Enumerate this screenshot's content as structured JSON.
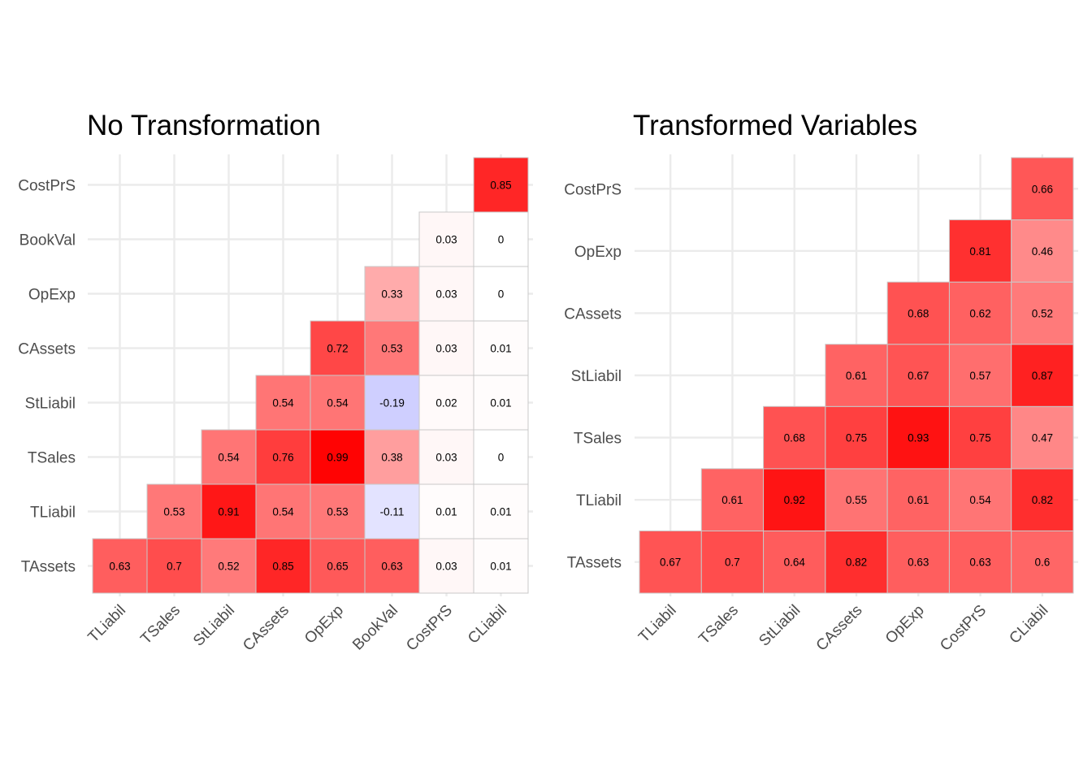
{
  "colors": {
    "high": "#FF0000",
    "mid": "#FFFFFF",
    "low": "#0000FF",
    "grid": "#EBEBEB",
    "tile_border": "#C8C8C8",
    "tick_text": "#4D4D4D"
  },
  "chart_data": [
    {
      "type": "heatmap",
      "title": "No Transformation",
      "x_categories": [
        "TLiabil",
        "TSales",
        "StLiabil",
        "CAssets",
        "OpExp",
        "BookVal",
        "CostPrS",
        "CLiabil"
      ],
      "y_categories": [
        "TAssets",
        "TLiabil",
        "TSales",
        "StLiabil",
        "CAssets",
        "OpExp",
        "BookVal",
        "CostPrS"
      ],
      "value_range": [
        -1,
        1
      ],
      "grid": true,
      "legend": "none",
      "cells": [
        {
          "x": "TLiabil",
          "y": "TAssets",
          "value": 0.63,
          "label": "0.63"
        },
        {
          "x": "TSales",
          "y": "TAssets",
          "value": 0.7,
          "label": "0.7"
        },
        {
          "x": "StLiabil",
          "y": "TAssets",
          "value": 0.52,
          "label": "0.52"
        },
        {
          "x": "CAssets",
          "y": "TAssets",
          "value": 0.85,
          "label": "0.85"
        },
        {
          "x": "OpExp",
          "y": "TAssets",
          "value": 0.65,
          "label": "0.65"
        },
        {
          "x": "BookVal",
          "y": "TAssets",
          "value": 0.63,
          "label": "0.63"
        },
        {
          "x": "CostPrS",
          "y": "TAssets",
          "value": 0.03,
          "label": "0.03"
        },
        {
          "x": "CLiabil",
          "y": "TAssets",
          "value": 0.01,
          "label": "0.01"
        },
        {
          "x": "TSales",
          "y": "TLiabil",
          "value": 0.53,
          "label": "0.53"
        },
        {
          "x": "StLiabil",
          "y": "TLiabil",
          "value": 0.91,
          "label": "0.91"
        },
        {
          "x": "CAssets",
          "y": "TLiabil",
          "value": 0.54,
          "label": "0.54"
        },
        {
          "x": "OpExp",
          "y": "TLiabil",
          "value": 0.53,
          "label": "0.53"
        },
        {
          "x": "BookVal",
          "y": "TLiabil",
          "value": -0.11,
          "label": "-0.11"
        },
        {
          "x": "CostPrS",
          "y": "TLiabil",
          "value": 0.01,
          "label": "0.01"
        },
        {
          "x": "CLiabil",
          "y": "TLiabil",
          "value": 0.01,
          "label": "0.01"
        },
        {
          "x": "StLiabil",
          "y": "TSales",
          "value": 0.54,
          "label": "0.54"
        },
        {
          "x": "CAssets",
          "y": "TSales",
          "value": 0.76,
          "label": "0.76"
        },
        {
          "x": "OpExp",
          "y": "TSales",
          "value": 0.99,
          "label": "0.99"
        },
        {
          "x": "BookVal",
          "y": "TSales",
          "value": 0.38,
          "label": "0.38"
        },
        {
          "x": "CostPrS",
          "y": "TSales",
          "value": 0.03,
          "label": "0.03"
        },
        {
          "x": "CLiabil",
          "y": "TSales",
          "value": 0,
          "label": "0"
        },
        {
          "x": "CAssets",
          "y": "StLiabil",
          "value": 0.54,
          "label": "0.54"
        },
        {
          "x": "OpExp",
          "y": "StLiabil",
          "value": 0.54,
          "label": "0.54"
        },
        {
          "x": "BookVal",
          "y": "StLiabil",
          "value": -0.19,
          "label": "-0.19"
        },
        {
          "x": "CostPrS",
          "y": "StLiabil",
          "value": 0.02,
          "label": "0.02"
        },
        {
          "x": "CLiabil",
          "y": "StLiabil",
          "value": 0.01,
          "label": "0.01"
        },
        {
          "x": "OpExp",
          "y": "CAssets",
          "value": 0.72,
          "label": "0.72"
        },
        {
          "x": "BookVal",
          "y": "CAssets",
          "value": 0.53,
          "label": "0.53"
        },
        {
          "x": "CostPrS",
          "y": "CAssets",
          "value": 0.03,
          "label": "0.03"
        },
        {
          "x": "CLiabil",
          "y": "CAssets",
          "value": 0.01,
          "label": "0.01"
        },
        {
          "x": "BookVal",
          "y": "OpExp",
          "value": 0.33,
          "label": "0.33"
        },
        {
          "x": "CostPrS",
          "y": "OpExp",
          "value": 0.03,
          "label": "0.03"
        },
        {
          "x": "CLiabil",
          "y": "OpExp",
          "value": 0,
          "label": "0"
        },
        {
          "x": "CostPrS",
          "y": "BookVal",
          "value": 0.03,
          "label": "0.03"
        },
        {
          "x": "CLiabil",
          "y": "BookVal",
          "value": 0,
          "label": "0"
        },
        {
          "x": "CLiabil",
          "y": "CostPrS",
          "value": 0.85,
          "label": "0.85"
        }
      ]
    },
    {
      "type": "heatmap",
      "title": "Transformed Variables",
      "x_categories": [
        "TLiabil",
        "TSales",
        "StLiabil",
        "CAssets",
        "OpExp",
        "CostPrS",
        "CLiabil"
      ],
      "y_categories": [
        "TAssets",
        "TLiabil",
        "TSales",
        "StLiabil",
        "CAssets",
        "OpExp",
        "CostPrS"
      ],
      "value_range": [
        -1,
        1
      ],
      "grid": true,
      "legend": "none",
      "cells": [
        {
          "x": "TLiabil",
          "y": "TAssets",
          "value": 0.67,
          "label": "0.67"
        },
        {
          "x": "TSales",
          "y": "TAssets",
          "value": 0.7,
          "label": "0.7"
        },
        {
          "x": "StLiabil",
          "y": "TAssets",
          "value": 0.64,
          "label": "0.64"
        },
        {
          "x": "CAssets",
          "y": "TAssets",
          "value": 0.82,
          "label": "0.82"
        },
        {
          "x": "OpExp",
          "y": "TAssets",
          "value": 0.63,
          "label": "0.63"
        },
        {
          "x": "CostPrS",
          "y": "TAssets",
          "value": 0.63,
          "label": "0.63"
        },
        {
          "x": "CLiabil",
          "y": "TAssets",
          "value": 0.6,
          "label": "0.6"
        },
        {
          "x": "TSales",
          "y": "TLiabil",
          "value": 0.61,
          "label": "0.61"
        },
        {
          "x": "StLiabil",
          "y": "TLiabil",
          "value": 0.92,
          "label": "0.92"
        },
        {
          "x": "CAssets",
          "y": "TLiabil",
          "value": 0.55,
          "label": "0.55"
        },
        {
          "x": "OpExp",
          "y": "TLiabil",
          "value": 0.61,
          "label": "0.61"
        },
        {
          "x": "CostPrS",
          "y": "TLiabil",
          "value": 0.54,
          "label": "0.54"
        },
        {
          "x": "CLiabil",
          "y": "TLiabil",
          "value": 0.82,
          "label": "0.82"
        },
        {
          "x": "StLiabil",
          "y": "TSales",
          "value": 0.68,
          "label": "0.68"
        },
        {
          "x": "CAssets",
          "y": "TSales",
          "value": 0.75,
          "label": "0.75"
        },
        {
          "x": "OpExp",
          "y": "TSales",
          "value": 0.93,
          "label": "0.93"
        },
        {
          "x": "CostPrS",
          "y": "TSales",
          "value": 0.75,
          "label": "0.75"
        },
        {
          "x": "CLiabil",
          "y": "TSales",
          "value": 0.47,
          "label": "0.47"
        },
        {
          "x": "CAssets",
          "y": "StLiabil",
          "value": 0.61,
          "label": "0.61"
        },
        {
          "x": "OpExp",
          "y": "StLiabil",
          "value": 0.67,
          "label": "0.67"
        },
        {
          "x": "CostPrS",
          "y": "StLiabil",
          "value": 0.57,
          "label": "0.57"
        },
        {
          "x": "CLiabil",
          "y": "StLiabil",
          "value": 0.87,
          "label": "0.87"
        },
        {
          "x": "OpExp",
          "y": "CAssets",
          "value": 0.68,
          "label": "0.68"
        },
        {
          "x": "CostPrS",
          "y": "CAssets",
          "value": 0.62,
          "label": "0.62"
        },
        {
          "x": "CLiabil",
          "y": "CAssets",
          "value": 0.52,
          "label": "0.52"
        },
        {
          "x": "CostPrS",
          "y": "OpExp",
          "value": 0.81,
          "label": "0.81"
        },
        {
          "x": "CLiabil",
          "y": "OpExp",
          "value": 0.46,
          "label": "0.46"
        },
        {
          "x": "CLiabil",
          "y": "CostPrS",
          "value": 0.66,
          "label": "0.66"
        }
      ]
    }
  ]
}
